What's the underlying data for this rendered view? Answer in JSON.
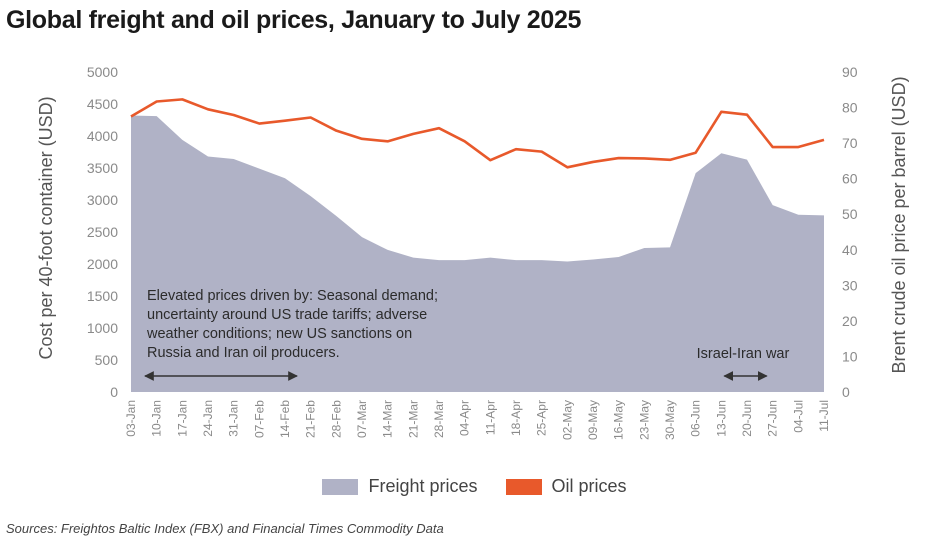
{
  "title": "Global freight and oil prices, January to July 2025",
  "source": "Sources: Freightos Baltic Index (FBX) and Financial Times Commodity Data",
  "chart_data": {
    "type": "area+line",
    "title": "Global freight and oil prices, January to July 2025",
    "categories": [
      "03-Jan",
      "10-Jan",
      "17-Jan",
      "24-Jan",
      "31-Jan",
      "07-Feb",
      "14-Feb",
      "21-Feb",
      "28-Feb",
      "07-Mar",
      "14-Mar",
      "21-Mar",
      "28-Mar",
      "04-Apr",
      "11-Apr",
      "18-Apr",
      "25-Apr",
      "02-May",
      "09-May",
      "16-May",
      "23-May",
      "30-May",
      "06-Jun",
      "13-Jun",
      "20-Jun",
      "27-Jun",
      "04-Jul",
      "11-Jul"
    ],
    "ylabel_left": "Cost per 40-foot container (USD)",
    "ylabel_right": "Brent crude oil price per barrel (USD)",
    "ylim_left": [
      0,
      5000
    ],
    "ylim_right": [
      0,
      90
    ],
    "yticks_left": [
      "0",
      "500",
      "1000",
      "1500",
      "2000",
      "2500",
      "3000",
      "3500",
      "4000",
      "4500",
      "5000"
    ],
    "yticks_right": [
      "0",
      "10",
      "20",
      "30",
      "40",
      "50",
      "60",
      "70",
      "80",
      "90"
    ],
    "series": [
      {
        "name": "Freight prices",
        "axis": "left",
        "kind": "area",
        "color": "#b0b2c6",
        "values": [
          4320,
          4310,
          3940,
          3680,
          3640,
          3490,
          3340,
          3060,
          2750,
          2420,
          2220,
          2100,
          2060,
          2060,
          2100,
          2060,
          2060,
          2040,
          2070,
          2110,
          2250,
          2260,
          3420,
          3730,
          3630,
          2920,
          2770,
          2760
        ]
      },
      {
        "name": "Oil prices",
        "axis": "right",
        "kind": "line",
        "color": "#e8592b",
        "values": [
          77.5,
          81.7,
          82.3,
          79.5,
          77.9,
          75.5,
          76.3,
          77.2,
          73.5,
          71.2,
          70.5,
          72.6,
          74.2,
          70.5,
          65.2,
          68.3,
          67.6,
          63.2,
          64.7,
          65.8,
          65.7,
          65.3,
          67.3,
          78.8,
          78.0,
          68.9,
          68.9,
          70.9
        ]
      }
    ],
    "annotations": [
      {
        "lines": [
          "Elevated prices driven by: Seasonal demand;",
          "uncertainty around US trade tariffs; adverse",
          "weather conditions; new US sanctions on",
          "Russia and Iran oil producers."
        ],
        "arrow_span": [
          "03-Jan",
          "14-Feb"
        ]
      },
      {
        "lines": [
          "Israel-Iran war"
        ],
        "arrow_span": [
          "13-Jun",
          "27-Jun"
        ]
      }
    ],
    "legend": [
      "Freight prices",
      "Oil prices"
    ],
    "legend_position": "bottom-center",
    "grid": false
  }
}
